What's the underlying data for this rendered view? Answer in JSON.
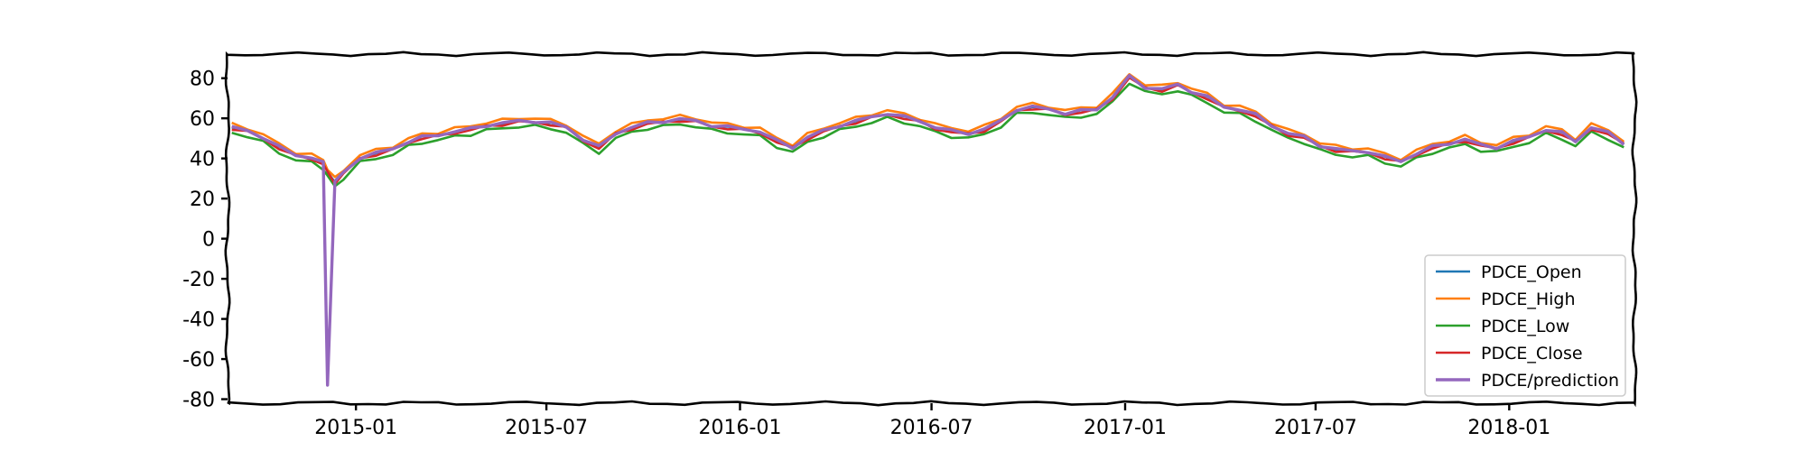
{
  "chart_data": {
    "type": "line",
    "title": "",
    "xlabel": "",
    "ylabel": "",
    "x_range": [
      "2014-09-01",
      "2018-04-30"
    ],
    "ylim": [
      -82,
      92
    ],
    "y_ticks": [
      80,
      60,
      40,
      20,
      0,
      -20,
      -40,
      -60,
      -80
    ],
    "y_tick_labels": [
      "80",
      "60",
      "40",
      "20",
      "0",
      "-20",
      "-40",
      "-60",
      "-80"
    ],
    "x_ticks": [
      "2015-01-01",
      "2015-07-01",
      "2016-01-01",
      "2016-07-01",
      "2017-01-01",
      "2017-07-01",
      "2018-01-01"
    ],
    "x_tick_labels": [
      "2015-01",
      "2015-07",
      "2016-01",
      "2016-07",
      "2017-01",
      "2017-07",
      "2018-01"
    ],
    "grid": false,
    "legend_position": "lower-right",
    "style": "xkcd",
    "dates": [
      "2014-09-05",
      "2014-09-20",
      "2014-10-05",
      "2014-10-20",
      "2014-11-05",
      "2014-11-20",
      "2014-12-01",
      "2014-12-05",
      "2014-12-12",
      "2014-12-20",
      "2015-01-05",
      "2015-01-20",
      "2015-02-05",
      "2015-02-20",
      "2015-03-05",
      "2015-03-20",
      "2015-04-05",
      "2015-04-20",
      "2015-05-05",
      "2015-05-20",
      "2015-06-05",
      "2015-06-20",
      "2015-07-05",
      "2015-07-20",
      "2015-08-05",
      "2015-08-20",
      "2015-09-05",
      "2015-09-20",
      "2015-10-05",
      "2015-10-20",
      "2015-11-05",
      "2015-11-20",
      "2015-12-05",
      "2015-12-20",
      "2016-01-05",
      "2016-01-20",
      "2016-02-05",
      "2016-02-20",
      "2016-03-05",
      "2016-03-20",
      "2016-04-05",
      "2016-04-20",
      "2016-05-05",
      "2016-05-20",
      "2016-06-05",
      "2016-06-20",
      "2016-07-05",
      "2016-07-20",
      "2016-08-05",
      "2016-08-20",
      "2016-09-05",
      "2016-09-20",
      "2016-10-05",
      "2016-10-20",
      "2016-11-05",
      "2016-11-20",
      "2016-12-05",
      "2016-12-20",
      "2017-01-05",
      "2017-01-20",
      "2017-02-05",
      "2017-02-20",
      "2017-03-05",
      "2017-03-20",
      "2017-04-05",
      "2017-04-20",
      "2017-05-05",
      "2017-05-20",
      "2017-06-05",
      "2017-06-20",
      "2017-07-05",
      "2017-07-20",
      "2017-08-05",
      "2017-08-20",
      "2017-09-05",
      "2017-09-20",
      "2017-10-05",
      "2017-10-20",
      "2017-11-05",
      "2017-11-20",
      "2017-12-05",
      "2017-12-20",
      "2018-01-05",
      "2018-01-20",
      "2018-02-05",
      "2018-02-20",
      "2018-03-05",
      "2018-03-20",
      "2018-04-05",
      "2018-04-20"
    ],
    "close": [
      55,
      53,
      50,
      45,
      41,
      40,
      37,
      33,
      28,
      32,
      40,
      42,
      44,
      48,
      50,
      51,
      53,
      54,
      56,
      57,
      58,
      58,
      57,
      55,
      49,
      45,
      52,
      55,
      57,
      58,
      59,
      58,
      56,
      55,
      54,
      53,
      48,
      45,
      50,
      53,
      56,
      58,
      60,
      62,
      60,
      58,
      55,
      53,
      52,
      54,
      58,
      64,
      65,
      64,
      62,
      63,
      64,
      70,
      80,
      75,
      74,
      76,
      73,
      70,
      65,
      64,
      61,
      56,
      52,
      50,
      46,
      44,
      43,
      43,
      40,
      38,
      42,
      45,
      47,
      49,
      46,
      45,
      48,
      50,
      54,
      52,
      48,
      55,
      52,
      47
    ],
    "series": [
      {
        "name": "PDCE_Open",
        "color": "#1f77b4",
        "offset": 0.5
      },
      {
        "name": "PDCE_High",
        "color": "#ff7f0e",
        "offset": 2.0
      },
      {
        "name": "PDCE_Low",
        "color": "#2ca02c",
        "offset": -2.0
      },
      {
        "name": "PDCE_Close",
        "color": "#d62728",
        "offset": 0
      },
      {
        "name": "PDCE/prediction",
        "color": "#9467bd",
        "offset": 0.6,
        "spike": {
          "date": "2014-12-05",
          "value": -73
        }
      }
    ]
  }
}
